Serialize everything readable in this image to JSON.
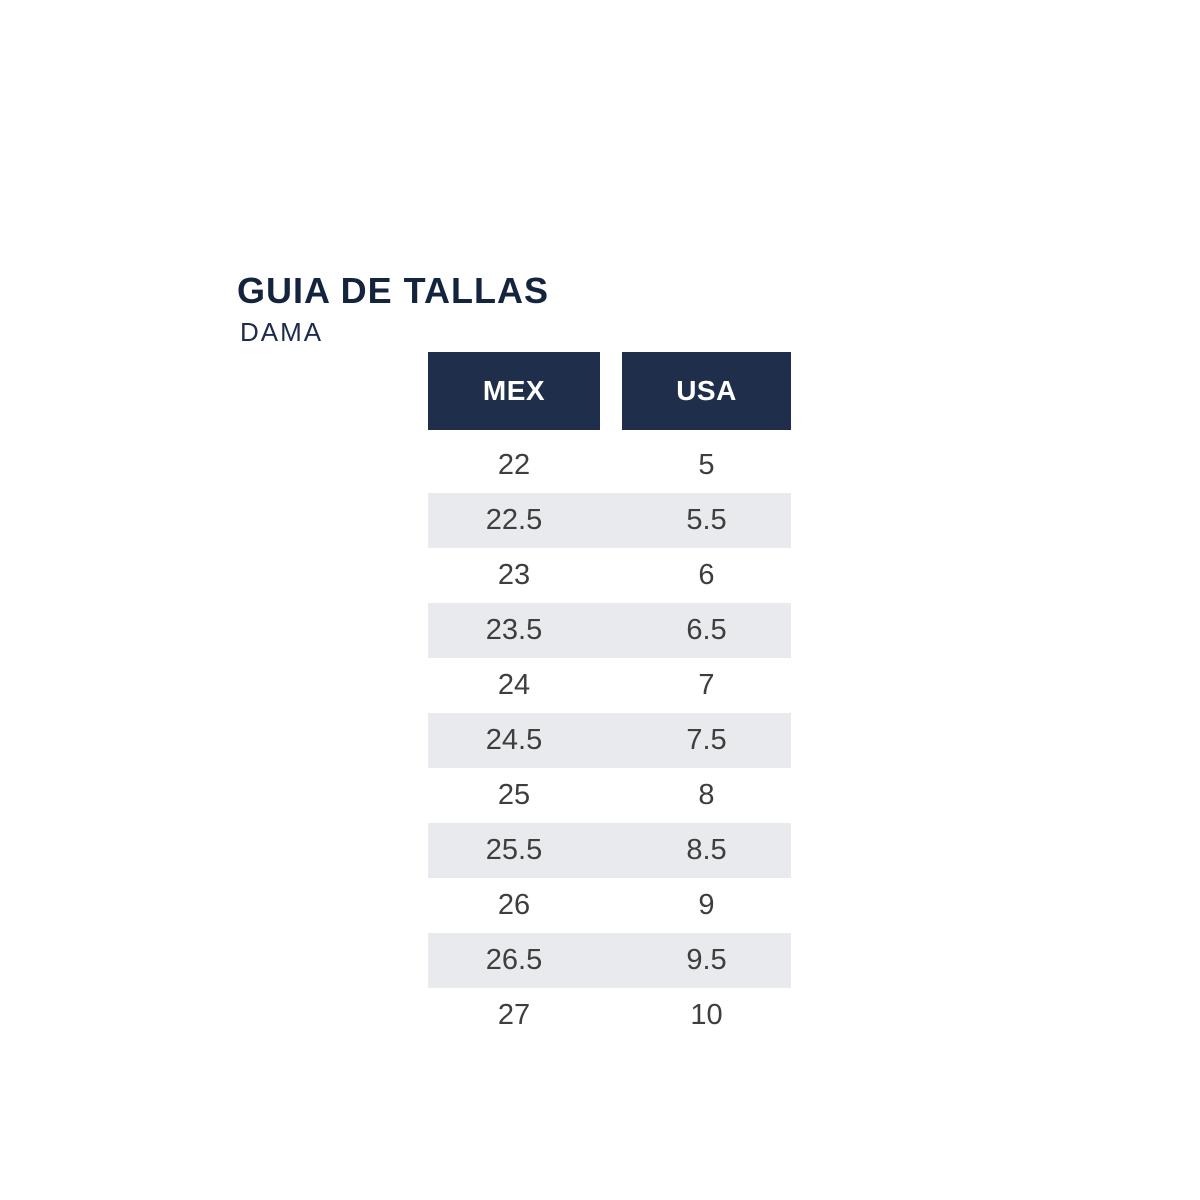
{
  "page": {
    "title": "GUIA DE TALLAS",
    "subtitle": "DAMA"
  },
  "size_table": {
    "columns": [
      "MEX",
      "USA"
    ],
    "rows": [
      {
        "mex": "22",
        "usa": "5"
      },
      {
        "mex": "22.5",
        "usa": "5.5"
      },
      {
        "mex": "23",
        "usa": "6"
      },
      {
        "mex": "23.5",
        "usa": "6.5"
      },
      {
        "mex": "24",
        "usa": "7"
      },
      {
        "mex": "24.5",
        "usa": "7.5"
      },
      {
        "mex": "25",
        "usa": "8"
      },
      {
        "mex": "25.5",
        "usa": "8.5"
      },
      {
        "mex": "26",
        "usa": "9"
      },
      {
        "mex": "26.5",
        "usa": "9.5"
      },
      {
        "mex": "27",
        "usa": "10"
      }
    ]
  },
  "colors": {
    "title_navy": "#14243e",
    "subtitle_navy": "#1c2c4a",
    "header_navy": "#1e2e4b",
    "header_text": "#ffffff",
    "stripe_gray": "#e9eaed",
    "cell_text": "#3e3e3e",
    "background": "#ffffff"
  }
}
